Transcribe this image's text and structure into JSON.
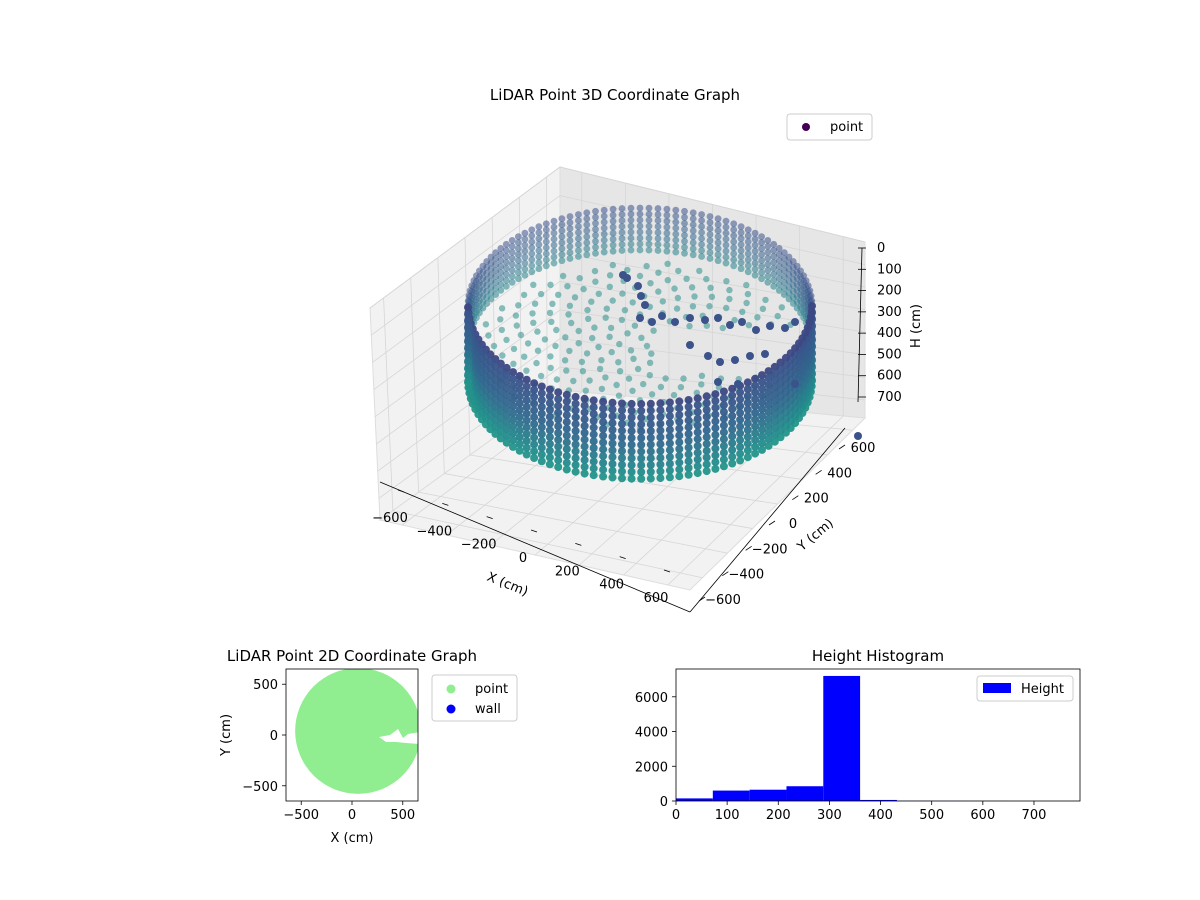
{
  "chart_data": [
    {
      "type": "scatter",
      "title": "LiDAR Point 3D Coordinate Graph",
      "xlabel": "X (cm)",
      "ylabel": "Y (cm)",
      "zlabel": "H (cm)",
      "xlim": [
        -700,
        700
      ],
      "ylim": [
        -700,
        700
      ],
      "zlim": [
        780,
        0
      ],
      "x_ticks": [
        "−600",
        "−400",
        "−200",
        "0",
        "200",
        "400",
        "600"
      ],
      "y_ticks": [
        "−600",
        "−400",
        "−200",
        "0",
        "200",
        "400",
        "600"
      ],
      "z_ticks": [
        "0",
        "100",
        "200",
        "300",
        "400",
        "500",
        "600",
        "700"
      ],
      "legend": [
        "point"
      ],
      "legend_position": "top-right",
      "grid": true,
      "colormap": "viridis",
      "series": [
        {
          "name": "point",
          "description_values": {
            "wall_radius_approx": 600,
            "wall_height_range": [
              0,
              330
            ],
            "floor_height_approx": 330
          }
        }
      ]
    },
    {
      "type": "scatter",
      "title": "LiDAR Point 2D Coordinate Graph",
      "xlabel": "X (cm)",
      "ylabel": "Y (cm)",
      "xlim": [
        -650,
        650
      ],
      "ylim": [
        -650,
        650
      ],
      "x_ticks": [
        "−500",
        "0",
        "500"
      ],
      "y_ticks": [
        "−500",
        "0",
        "500"
      ],
      "legend": [
        "point",
        "wall"
      ],
      "legend_position": "outside-right",
      "series": [
        {
          "name": "point",
          "color": "#90ee90",
          "region": {
            "center": [
              0,
              0
            ],
            "radius": 620
          }
        },
        {
          "name": "wall",
          "color": "#0000ff",
          "values": []
        }
      ]
    },
    {
      "type": "bar",
      "title": "Height Histogram",
      "xlabel": "",
      "ylabel": "",
      "xlim": [
        0,
        790
      ],
      "ylim": [
        0,
        7600
      ],
      "x_ticks": [
        "0",
        "100",
        "200",
        "300",
        "400",
        "500",
        "600",
        "700"
      ],
      "y_ticks": [
        "0",
        "2000",
        "4000",
        "6000"
      ],
      "legend": [
        "Height"
      ],
      "legend_position": "top-right",
      "series": [
        {
          "name": "Height",
          "color": "#0000ff",
          "bins": [
            0,
            72,
            144,
            216,
            288,
            360,
            432,
            504,
            576,
            648,
            720,
            792
          ],
          "values": [
            150,
            600,
            650,
            850,
            7200,
            60,
            10,
            5,
            3,
            2,
            1
          ]
        }
      ]
    }
  ],
  "colors": {
    "viridis_dark": "#440154",
    "viridis_mid": "#31688e",
    "viridis_teal": "#21918c",
    "light_green": "#90ee90",
    "blue": "#0000ff"
  }
}
